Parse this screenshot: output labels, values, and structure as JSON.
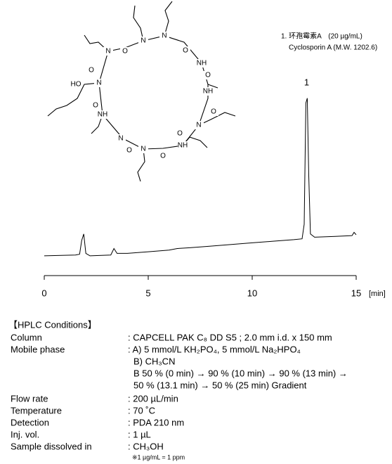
{
  "compound": {
    "line1": "1. 环孢霉素A　(20 µg/mL)",
    "line2": "Cyclosporin A (M.W. 1202.6)"
  },
  "structure": {
    "labels": [
      "N",
      "N",
      "O",
      "O",
      "N",
      "O",
      "NH",
      "HO",
      "N",
      "O",
      "NH",
      "O",
      "NH",
      "N",
      "O",
      "N",
      "N",
      "NH",
      "O",
      "O",
      "O"
    ]
  },
  "chart_data": {
    "type": "line",
    "x": [
      0,
      1.5,
      1.7,
      1.8,
      1.9,
      2.0,
      2.2,
      3.2,
      3.35,
      3.5,
      4,
      5,
      6,
      6.4,
      7,
      8,
      9,
      10,
      11,
      12,
      12.4,
      12.5,
      12.58,
      12.65,
      12.72,
      12.8,
      13,
      14,
      14.8,
      14.9,
      15
    ],
    "values": [
      0.5,
      1,
      1.5,
      10,
      14,
      2,
      0.5,
      1,
      5,
      2,
      2,
      3,
      4,
      5,
      5.5,
      6.5,
      7.5,
      8.5,
      9.5,
      10.5,
      11,
      20,
      95,
      98,
      50,
      14,
      12,
      12.5,
      13,
      15,
      13.5
    ],
    "color": "#000000",
    "xlim": [
      0,
      15
    ],
    "xticks": [
      0,
      5,
      10,
      15
    ],
    "ylim": [
      0,
      100
    ],
    "xlabel": "[min]",
    "peak_labels": [
      {
        "x": 12.62,
        "label": "1"
      }
    ]
  },
  "conditions": {
    "title": "【HPLC Conditions】",
    "rows": [
      {
        "label": "Column",
        "value": [
          ": CAPCELL PAK C₈ DD S5 ; 2.0 mm i.d. x 150 mm"
        ]
      },
      {
        "label": "Mobile phase",
        "value": [
          ": A) 5 mmol/L KH₂PO₄, 5 mmol/L Na₂HPO₄",
          "B) CH₃CN",
          "B 50 % (0 min) → 90 % (10 min) → 90 % (13 min) →",
          "50 % (13.1 min) → 50 % (25 min) Gradient"
        ]
      },
      {
        "label": "Flow rate",
        "value": [
          ": 200 µL/min"
        ]
      },
      {
        "label": "Temperature",
        "value": [
          ": 70 ˚C"
        ]
      },
      {
        "label": "Detection",
        "value": [
          ": PDA 210 nm"
        ]
      },
      {
        "label": "Inj. vol.",
        "value": [
          ": 1 µL"
        ]
      },
      {
        "label": "Sample dissolved in",
        "value": [
          ": CH₃OH"
        ]
      }
    ],
    "note": "※1 µg/mL = 1 ppm"
  }
}
